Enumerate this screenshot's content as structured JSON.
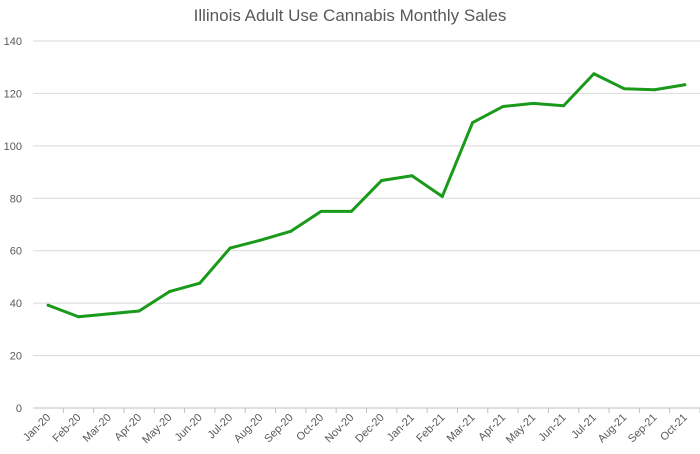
{
  "chart_data": {
    "type": "line",
    "title": "Illinois Adult Use Cannabis Monthly Sales",
    "xlabel": "",
    "ylabel": "",
    "ylim": [
      0,
      140
    ],
    "yticks": [
      0,
      20,
      40,
      60,
      80,
      100,
      120,
      140
    ],
    "grid": true,
    "legend": "none",
    "categories": [
      "Jan-20",
      "Feb-20",
      "Mar-20",
      "Apr-20",
      "May-20",
      "Jun-20",
      "Jul-20",
      "Aug-20",
      "Sep-20",
      "Oct-20",
      "Nov-20",
      "Dec-20",
      "Jan-21",
      "Feb-21",
      "Mar-21",
      "Apr-21",
      "May-21",
      "Jun-21",
      "Jul-21",
      "Aug-21",
      "Sep-21",
      "Oct-21"
    ],
    "series": [
      {
        "name": "Monthly Sales",
        "color": "#1a9a1a",
        "values": [
          39.2,
          34.8,
          35.9,
          37.0,
          44.4,
          47.6,
          61.0,
          64.0,
          67.4,
          75.0,
          75.0,
          86.8,
          88.6,
          80.7,
          108.9,
          115.0,
          116.2,
          115.3,
          127.5,
          121.8,
          121.4,
          123.3
        ]
      }
    ]
  }
}
